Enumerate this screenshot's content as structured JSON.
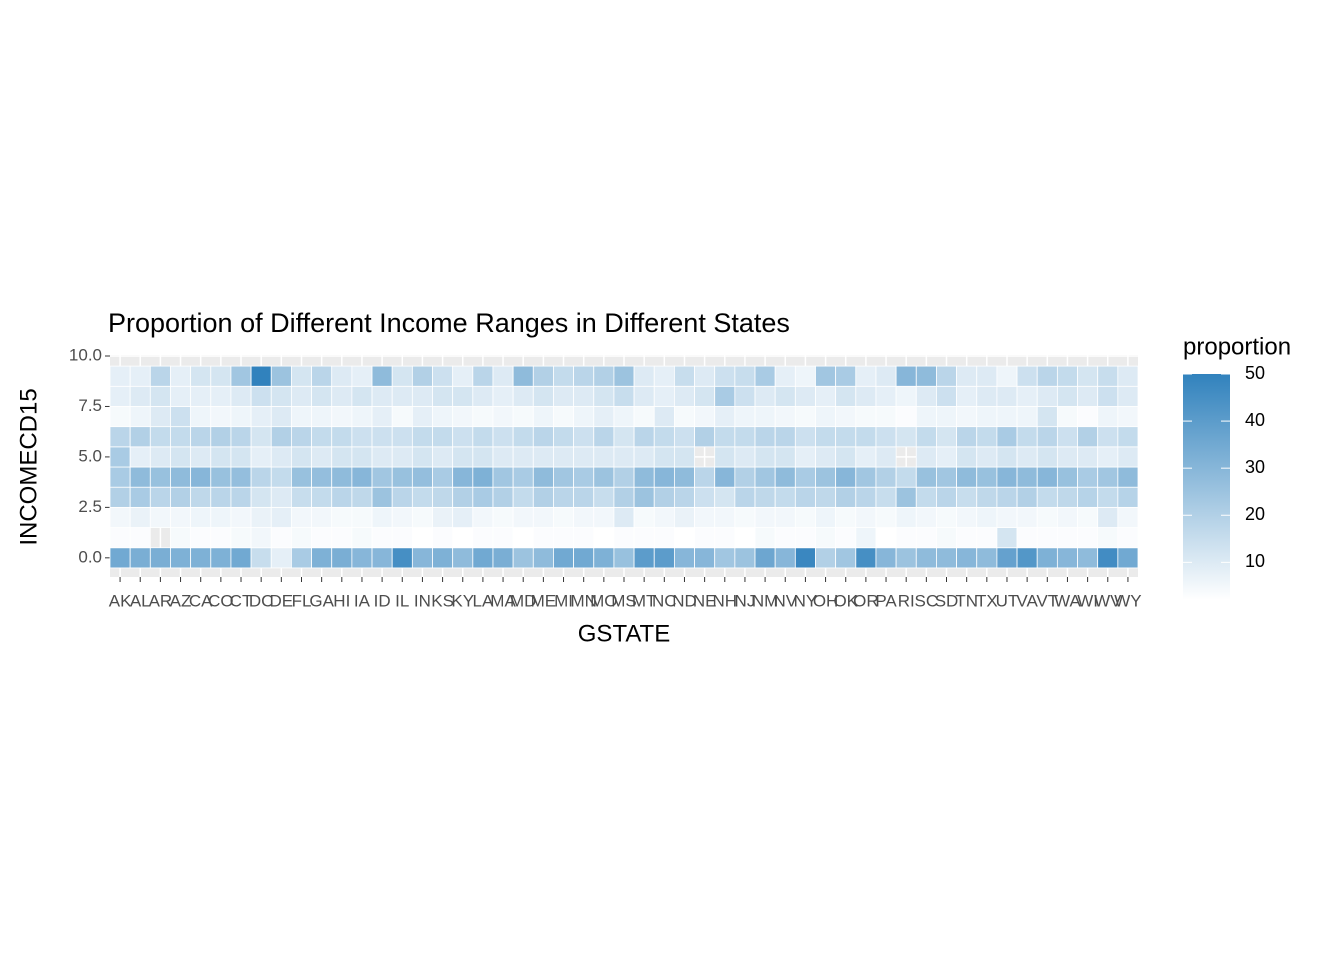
{
  "chart_data": {
    "type": "heatmap",
    "title": "Proportion of Different Income Ranges in Different States",
    "xlabel": "GSTATE",
    "ylabel": "INCOMECD15",
    "legend_title": "proportion",
    "x": [
      "AK",
      "AL",
      "AR",
      "AZ",
      "CA",
      "CO",
      "CT",
      "DC",
      "DE",
      "FL",
      "GA",
      "HI",
      "IA",
      "ID",
      "IL",
      "IN",
      "KS",
      "KY",
      "LA",
      "MA",
      "MD",
      "ME",
      "MI",
      "MN",
      "MO",
      "MS",
      "MT",
      "NC",
      "ND",
      "NE",
      "NH",
      "NJ",
      "NM",
      "NV",
      "NY",
      "OH",
      "OK",
      "OR",
      "PA",
      "RI",
      "SC",
      "SD",
      "TN",
      "TX",
      "UT",
      "VA",
      "VT",
      "WA",
      "WI",
      "WV",
      "WY"
    ],
    "y": [
      0,
      1,
      2,
      3,
      4,
      5,
      6,
      7,
      8,
      9
    ],
    "z": [
      [
        35,
        33,
        33,
        32,
        32,
        32,
        35,
        15,
        8,
        22,
        32,
        33,
        30,
        30,
        45,
        30,
        32,
        28,
        35,
        33,
        25,
        28,
        35,
        35,
        32,
        26,
        40,
        40,
        30,
        30,
        24,
        25,
        36,
        30,
        48,
        20,
        24,
        45,
        30,
        25,
        28,
        28,
        30,
        28,
        38,
        42,
        32,
        30,
        28,
        46,
        35
      ],
      [
        3,
        3,
        null,
        4,
        3,
        3,
        4,
        5,
        3,
        4,
        3,
        3,
        4,
        3,
        3,
        2,
        3,
        2,
        3,
        3,
        2,
        3,
        3,
        3,
        2,
        3,
        3,
        3,
        2,
        3,
        3,
        2,
        4,
        3,
        3,
        4,
        3,
        6,
        2,
        3,
        3,
        4,
        3,
        3,
        12,
        3,
        3,
        3,
        3,
        4,
        3
      ],
      [
        5,
        7,
        5,
        5,
        6,
        6,
        5,
        7,
        8,
        5,
        5,
        4,
        4,
        6,
        5,
        4,
        7,
        8,
        5,
        4,
        5,
        5,
        4,
        5,
        5,
        10,
        4,
        5,
        7,
        5,
        5,
        4,
        5,
        5,
        4,
        6,
        4,
        5,
        4,
        6,
        5,
        4,
        5,
        6,
        5,
        5,
        4,
        5,
        4,
        10,
        5
      ],
      [
        20,
        22,
        18,
        20,
        17,
        18,
        18,
        12,
        10,
        15,
        16,
        18,
        17,
        25,
        18,
        16,
        17,
        20,
        22,
        20,
        16,
        20,
        18,
        18,
        15,
        20,
        25,
        20,
        18,
        14,
        12,
        18,
        17,
        16,
        18,
        17,
        20,
        18,
        15,
        25,
        16,
        18,
        15,
        17,
        18,
        20,
        16,
        17,
        19,
        16,
        19
      ],
      [
        22,
        28,
        26,
        28,
        30,
        26,
        27,
        18,
        16,
        26,
        27,
        28,
        30,
        24,
        26,
        27,
        22,
        30,
        32,
        24,
        22,
        28,
        24,
        22,
        25,
        20,
        28,
        30,
        28,
        18,
        30,
        20,
        24,
        28,
        22,
        25,
        30,
        24,
        20,
        16,
        26,
        24,
        28,
        26,
        30,
        28,
        30,
        26,
        22,
        24,
        28
      ],
      [
        22,
        8,
        10,
        12,
        10,
        12,
        12,
        8,
        10,
        12,
        10,
        12,
        12,
        10,
        10,
        12,
        10,
        12,
        12,
        10,
        10,
        10,
        10,
        10,
        10,
        10,
        10,
        12,
        12,
        null,
        12,
        10,
        12,
        12,
        8,
        10,
        12,
        8,
        10,
        null,
        10,
        8,
        12,
        10,
        12,
        10,
        12,
        10,
        10,
        8,
        10
      ],
      [
        18,
        20,
        16,
        16,
        18,
        20,
        18,
        12,
        20,
        18,
        16,
        16,
        14,
        14,
        14,
        16,
        16,
        14,
        16,
        14,
        16,
        18,
        16,
        14,
        18,
        12,
        18,
        16,
        14,
        20,
        16,
        16,
        18,
        18,
        14,
        16,
        16,
        16,
        14,
        12,
        16,
        12,
        18,
        16,
        22,
        16,
        18,
        14,
        20,
        14,
        16
      ],
      [
        4,
        6,
        10,
        14,
        6,
        5,
        6,
        8,
        10,
        6,
        6,
        5,
        6,
        8,
        4,
        8,
        6,
        5,
        4,
        5,
        4,
        6,
        4,
        6,
        8,
        6,
        4,
        10,
        4,
        5,
        8,
        6,
        6,
        5,
        4,
        6,
        5,
        4,
        4,
        3,
        6,
        6,
        5,
        6,
        6,
        6,
        12,
        4,
        3,
        6,
        5
      ],
      [
        8,
        10,
        12,
        8,
        8,
        8,
        10,
        14,
        12,
        10,
        12,
        10,
        12,
        10,
        10,
        10,
        12,
        12,
        10,
        8,
        10,
        12,
        10,
        10,
        12,
        15,
        10,
        8,
        10,
        12,
        22,
        14,
        10,
        12,
        10,
        8,
        12,
        10,
        8,
        6,
        10,
        14,
        8,
        10,
        10,
        8,
        10,
        12,
        10,
        14,
        10
      ],
      [
        8,
        8,
        18,
        8,
        12,
        12,
        24,
        50,
        25,
        12,
        18,
        10,
        8,
        28,
        12,
        20,
        14,
        8,
        18,
        10,
        28,
        20,
        16,
        18,
        20,
        25,
        10,
        8,
        15,
        10,
        14,
        15,
        22,
        8,
        6,
        24,
        22,
        8,
        10,
        30,
        28,
        18,
        10,
        10,
        6,
        14,
        18,
        16,
        12,
        15,
        10
      ]
    ],
    "ylim": [
      -0.95,
      10.05
    ],
    "yticks": [
      {
        "value": 0,
        "label": "0.0"
      },
      {
        "value": 2.5,
        "label": "2.5"
      },
      {
        "value": 5,
        "label": "5.0"
      },
      {
        "value": 7.5,
        "label": "7.5"
      },
      {
        "value": 10,
        "label": "10.0"
      }
    ],
    "zlim": [
      2,
      50
    ],
    "zticks": [
      10,
      20,
      30,
      40,
      50
    ],
    "low_color": "#ffffff",
    "high_color": "#3182bd",
    "grid": true
  }
}
